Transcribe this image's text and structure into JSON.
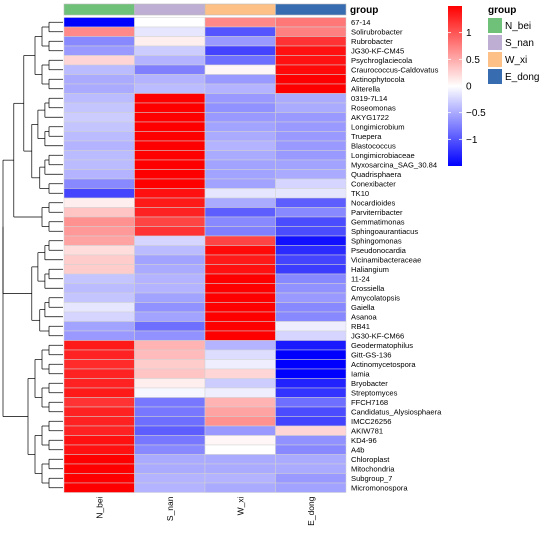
{
  "chart_data": {
    "type": "heatmap",
    "columns": [
      "N_bei",
      "S_nan",
      "W_xi",
      "E_dong"
    ],
    "column_annotation": {
      "title": "group",
      "levels": [
        {
          "name": "N_bei",
          "color": "#6FC179"
        },
        {
          "name": "S_nan",
          "color": "#BEAED4"
        },
        {
          "name": "W_xi",
          "color": "#FDC086"
        },
        {
          "name": "E_dong",
          "color": "#386CB0"
        }
      ]
    },
    "color_scale": {
      "low": "#0000FF",
      "mid": "#FFFFFF",
      "high": "#FF0000",
      "min": -1.5,
      "max": 1.5,
      "ticks": [
        1,
        0.5,
        0,
        -0.5,
        -1
      ]
    },
    "rows": [
      {
        "name": "67-14",
        "values": [
          -1.5,
          0.0,
          0.7,
          0.8
        ]
      },
      {
        "name": "Solirubrobacter",
        "values": [
          0.7,
          -0.15,
          -1.0,
          0.75
        ]
      },
      {
        "name": "Rubrobacter",
        "values": [
          -0.7,
          0.1,
          -0.6,
          1.2
        ]
      },
      {
        "name": "JG30-KF-CM45",
        "values": [
          -0.6,
          -0.3,
          -1.1,
          1.4
        ]
      },
      {
        "name": "Psychroglaciecola",
        "values": [
          0.25,
          -0.45,
          -0.85,
          1.4
        ]
      },
      {
        "name": "Craurococcus-Caldovatus",
        "values": [
          -0.4,
          -0.75,
          0.05,
          1.45
        ]
      },
      {
        "name": "Actinophytocola",
        "values": [
          -0.5,
          -0.45,
          -0.6,
          1.5
        ]
      },
      {
        "name": "Aliterella",
        "values": [
          -0.5,
          -0.4,
          -0.45,
          1.5
        ]
      },
      {
        "name": "0319-7L14",
        "values": [
          -0.4,
          1.5,
          -0.6,
          -0.5
        ]
      },
      {
        "name": "Roseomonas",
        "values": [
          -0.35,
          1.5,
          -0.65,
          -0.5
        ]
      },
      {
        "name": "AKYG1722",
        "values": [
          -0.3,
          1.5,
          -0.6,
          -0.6
        ]
      },
      {
        "name": "Longimicrobium",
        "values": [
          -0.35,
          1.5,
          -0.55,
          -0.6
        ]
      },
      {
        "name": "Truepera",
        "values": [
          -0.4,
          1.5,
          -0.5,
          -0.6
        ]
      },
      {
        "name": "Blastococcus",
        "values": [
          -0.45,
          1.5,
          -0.45,
          -0.6
        ]
      },
      {
        "name": "Longimicrobiaceae",
        "values": [
          -0.4,
          1.5,
          -0.5,
          -0.6
        ]
      },
      {
        "name": "Myxosarcina_SAG_30.84",
        "values": [
          -0.4,
          1.5,
          -0.55,
          -0.55
        ]
      },
      {
        "name": "Quadrisphaera",
        "values": [
          -0.45,
          1.5,
          -0.55,
          -0.5
        ]
      },
      {
        "name": "Conexibacter",
        "values": [
          -0.7,
          1.5,
          -0.55,
          -0.25
        ]
      },
      {
        "name": "TK10",
        "values": [
          -1.1,
          1.4,
          -0.15,
          -0.15
        ]
      },
      {
        "name": "Nocardioides",
        "values": [
          0.1,
          1.35,
          -0.5,
          -0.95
        ]
      },
      {
        "name": "Parviterribacter",
        "values": [
          0.35,
          1.3,
          -0.95,
          -0.7
        ]
      },
      {
        "name": "Gemmatimonas",
        "values": [
          0.65,
          1.1,
          -0.7,
          -1.05
        ]
      },
      {
        "name": "Sphingoaurantiacus",
        "values": [
          0.6,
          1.2,
          -0.75,
          -1.05
        ]
      },
      {
        "name": "Sphingomonas",
        "values": [
          0.55,
          -0.25,
          1.1,
          -1.4
        ]
      },
      {
        "name": "Pseudonocardia",
        "values": [
          0.2,
          -0.4,
          1.45,
          -1.25
        ]
      },
      {
        "name": "Vicinamibacteraceae",
        "values": [
          0.3,
          -0.55,
          1.35,
          -1.1
        ]
      },
      {
        "name": "Haliangium",
        "values": [
          0.3,
          -0.5,
          1.4,
          -1.15
        ]
      },
      {
        "name": "11-24",
        "values": [
          -0.35,
          -0.45,
          1.5,
          -0.7
        ]
      },
      {
        "name": "Crossiella",
        "values": [
          -0.4,
          -0.45,
          1.5,
          -0.65
        ]
      },
      {
        "name": "Amycolatopsis",
        "values": [
          -0.35,
          -0.55,
          1.5,
          -0.6
        ]
      },
      {
        "name": "Gaiella",
        "values": [
          -0.15,
          -0.65,
          1.5,
          -0.7
        ]
      },
      {
        "name": "Asanoa",
        "values": [
          -0.25,
          -0.55,
          1.5,
          -0.7
        ]
      },
      {
        "name": "RB41",
        "values": [
          -0.55,
          -0.85,
          1.5,
          -0.1
        ]
      },
      {
        "name": "JG30-KF-CM66",
        "values": [
          -0.6,
          -0.65,
          1.5,
          -0.25
        ]
      },
      {
        "name": "Geodermatophilus",
        "values": [
          1.35,
          0.45,
          -0.45,
          -1.35
        ]
      },
      {
        "name": "Gitt-GS-136",
        "values": [
          1.3,
          0.4,
          -0.2,
          -1.5
        ]
      },
      {
        "name": "Actinomycetospora",
        "values": [
          1.25,
          0.3,
          -0.1,
          -1.5
        ]
      },
      {
        "name": "Iamia",
        "values": [
          1.3,
          0.35,
          0.25,
          -1.5
        ]
      },
      {
        "name": "Bryobacter",
        "values": [
          1.3,
          0.1,
          -0.3,
          -1.3
        ]
      },
      {
        "name": "Streptomyces",
        "values": [
          1.35,
          -0.05,
          -0.1,
          -1.2
        ]
      },
      {
        "name": "FFCH7168",
        "values": [
          1.2,
          -0.8,
          0.45,
          -0.85
        ]
      },
      {
        "name": "Candidatus_Alysiosphaera",
        "values": [
          1.3,
          -0.8,
          0.55,
          -1.05
        ]
      },
      {
        "name": "IMCC26256",
        "values": [
          1.3,
          -0.85,
          0.65,
          -1.1
        ]
      },
      {
        "name": "AKIW781",
        "values": [
          1.3,
          -0.95,
          -0.6,
          0.25
        ]
      },
      {
        "name": "KD4-96",
        "values": [
          1.4,
          -0.8,
          0.05,
          -0.65
        ]
      },
      {
        "name": "A4b",
        "values": [
          1.4,
          -0.7,
          0.0,
          -0.7
        ]
      },
      {
        "name": "Chloroplast",
        "values": [
          1.5,
          -0.5,
          -0.5,
          -0.5
        ]
      },
      {
        "name": "Mitochondria",
        "values": [
          1.5,
          -0.5,
          -0.5,
          -0.5
        ]
      },
      {
        "name": "Subgroup_7",
        "values": [
          1.5,
          -0.45,
          -0.45,
          -0.6
        ]
      },
      {
        "name": "Micromonospora",
        "values": [
          1.5,
          -0.45,
          -0.5,
          -0.55
        ]
      }
    ]
  }
}
